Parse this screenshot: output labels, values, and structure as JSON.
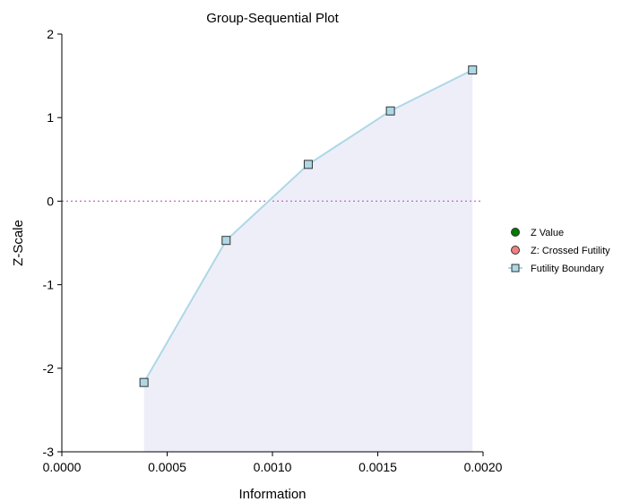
{
  "chart_data": {
    "type": "line",
    "title": "Group-Sequential Plot",
    "xlabel": "Information",
    "ylabel": "Z-Scale",
    "xlim": [
      0.0,
      0.002
    ],
    "ylim": [
      -3,
      2
    ],
    "x_ticks": [
      "0.0000",
      "0.0005",
      "0.0010",
      "0.0015",
      "0.0020"
    ],
    "y_ticks": [
      "2",
      "1",
      "0",
      "-1",
      "-2",
      "-3"
    ],
    "reference_line": {
      "y": 0,
      "style": "dotted",
      "color": "#cc66cc"
    },
    "legend": {
      "placement": "right",
      "entries": [
        {
          "name": "Z Value",
          "marker": "circle",
          "color": "#007a00"
        },
        {
          "name": "Z: Crossed Futility",
          "marker": "circle",
          "color": "#f08080"
        },
        {
          "name": "Futility Boundary",
          "marker": "square",
          "color": "#add8e6"
        }
      ]
    },
    "series": [
      {
        "name": "Futility Boundary",
        "marker": "square",
        "line_color": "#add8e6",
        "fill_color": "#eeeef9",
        "fill_to": -3,
        "x": [
          0.00039,
          0.00078,
          0.00117,
          0.00156,
          0.00195
        ],
        "y": [
          -2.17,
          -0.47,
          0.44,
          1.08,
          1.57
        ]
      },
      {
        "name": "Z Value",
        "marker": "circle",
        "x": [],
        "y": []
      },
      {
        "name": "Z: Crossed Futility",
        "marker": "circle",
        "x": [],
        "y": []
      }
    ]
  }
}
